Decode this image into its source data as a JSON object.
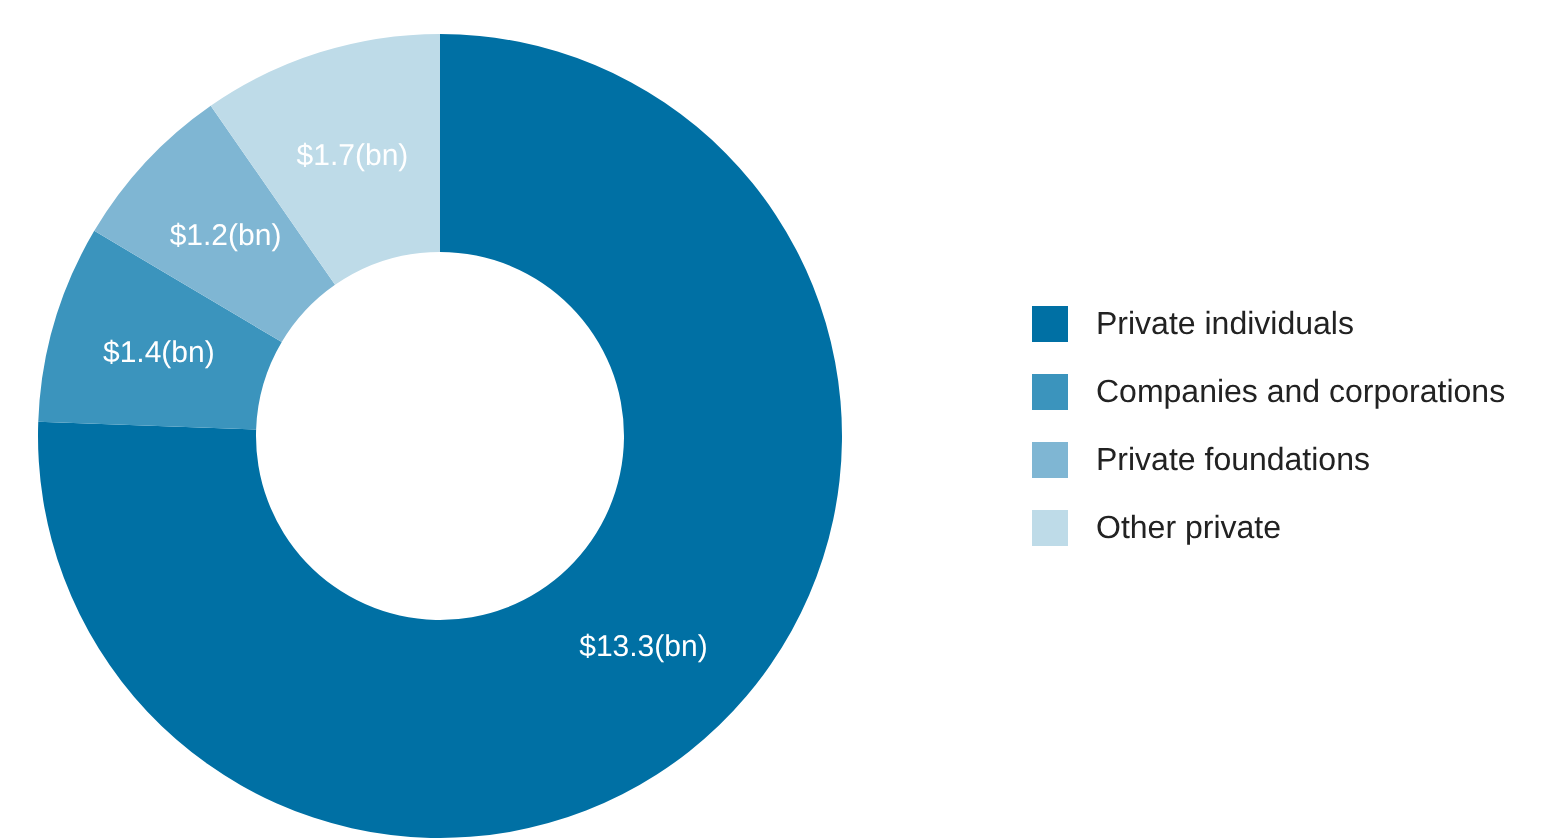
{
  "chart_data": {
    "type": "donut",
    "categories": [
      "Private individuals",
      "Companies and corporations",
      "Private foundations",
      "Other private"
    ],
    "values": [
      13.3,
      1.4,
      1.2,
      1.7
    ],
    "value_labels": [
      "$13.3(bn)",
      "$1.4(bn)",
      "$1.2(bn)",
      "$1.7(bn)"
    ],
    "colors": [
      "#0070a4",
      "#3b94bd",
      "#7fb6d3",
      "#bedbe8"
    ],
    "legend": "right"
  }
}
